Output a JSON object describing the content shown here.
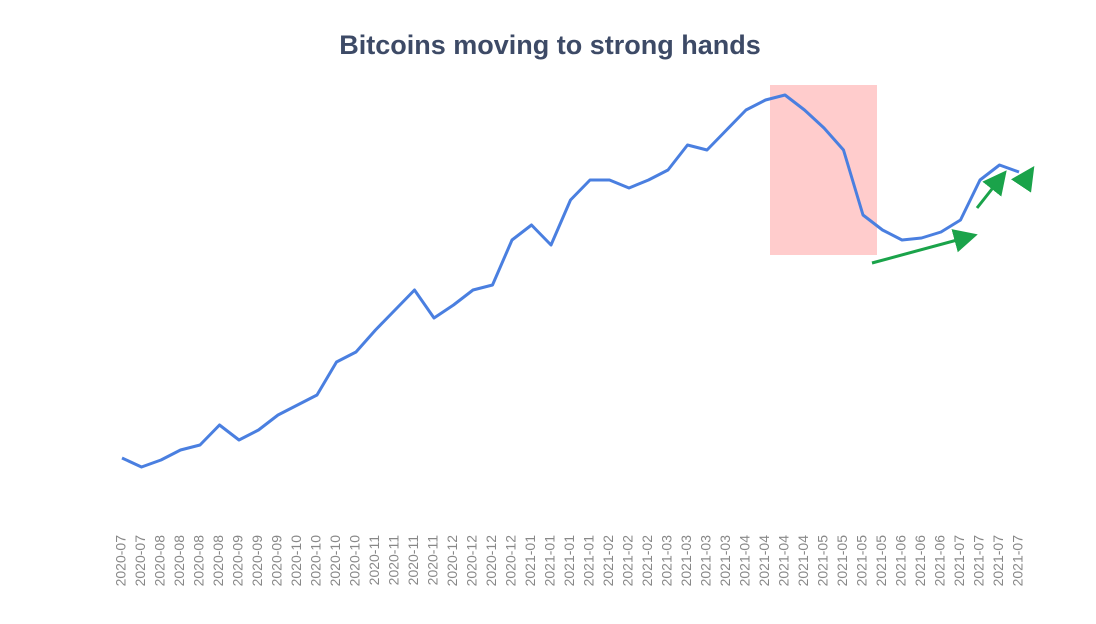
{
  "chart_data": {
    "type": "line",
    "title": "Bitcoins moving to strong hands",
    "categories": [
      "2020-07",
      "2020-07",
      "2020-08",
      "2020-08",
      "2020-08",
      "2020-08",
      "2020-09",
      "2020-09",
      "2020-09",
      "2020-10",
      "2020-10",
      "2020-10",
      "2020-10",
      "2020-11",
      "2020-11",
      "2020-11",
      "2020-11",
      "2020-12",
      "2020-12",
      "2020-12",
      "2020-12",
      "2021-01",
      "2021-01",
      "2021-01",
      "2021-01",
      "2021-02",
      "2021-02",
      "2021-02",
      "2021-03",
      "2021-03",
      "2021-03",
      "2021-03",
      "2021-04",
      "2021-04",
      "2021-04",
      "2021-04",
      "2021-05",
      "2021-05",
      "2021-05",
      "2021-05",
      "2021-06",
      "2021-06",
      "2021-06",
      "2021-07",
      "2021-07",
      "2021-07",
      "2021-07"
    ],
    "values": [
      5.5,
      3.25,
      5,
      7.5,
      8.75,
      13.75,
      10,
      12.5,
      16.25,
      18.75,
      21.25,
      29.5,
      32,
      37.5,
      42.5,
      47.5,
      40.5,
      43.75,
      47.5,
      48.75,
      60,
      63.75,
      58.75,
      70,
      75,
      75,
      73,
      75,
      77.5,
      83.75,
      82.5,
      87.5,
      92.5,
      95,
      96.25,
      92.5,
      88,
      82.5,
      66.25,
      62.5,
      60,
      60.5,
      62,
      65,
      75,
      78.75,
      77
    ],
    "color": "#4a7fe0",
    "ylim": [
      0,
      100
    ]
  }
}
